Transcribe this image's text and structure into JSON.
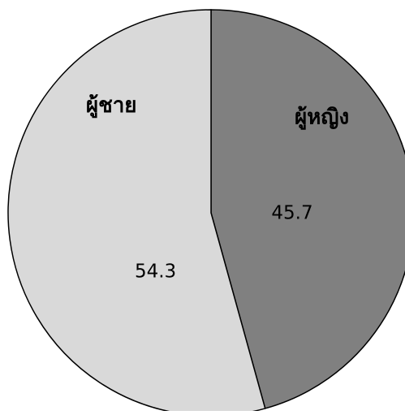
{
  "chart_data": {
    "type": "pie",
    "title": "",
    "slices": [
      {
        "label": "ผู้หญิง",
        "value": 45.7,
        "color": "#808080"
      },
      {
        "label": "ผู้ชาย",
        "value": 54.3,
        "color": "#d9d9d9"
      }
    ],
    "start_position": "12 o'clock",
    "direction": "clockwise",
    "border_color": "#000000",
    "legend": "none"
  }
}
